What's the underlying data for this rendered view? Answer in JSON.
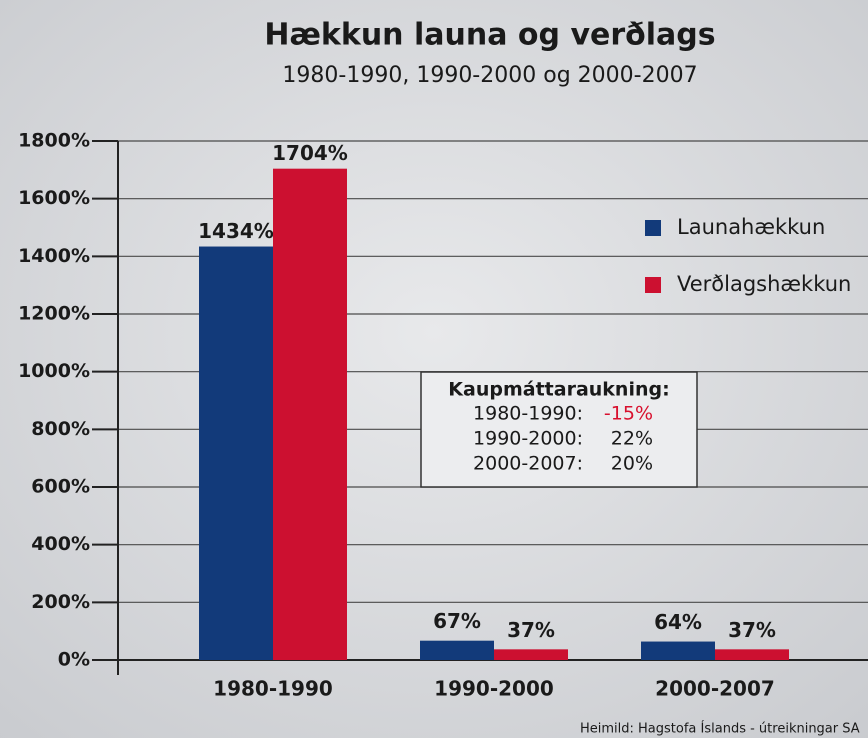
{
  "chart_data": {
    "type": "bar",
    "title": "Hækkun launa og verðlags",
    "subtitle": "1980-1990, 1990-2000 og 2000-2007",
    "categories": [
      "1980-1990",
      "1990-2000",
      "2000-2007"
    ],
    "series": [
      {
        "name": "Launahækkun",
        "color": "#123a7a",
        "values": [
          1434,
          67,
          64
        ],
        "value_labels": [
          "1434%",
          "67%",
          "64%"
        ]
      },
      {
        "name": "Verðlagshækkun",
        "color": "#cc1030",
        "values": [
          1704,
          37,
          37
        ],
        "value_labels": [
          "1704%",
          "37%",
          "37%"
        ]
      }
    ],
    "ylim": [
      0,
      1800
    ],
    "yticks": [
      {
        "value": 0,
        "label": "0%"
      },
      {
        "value": 200,
        "label": "200%"
      },
      {
        "value": 400,
        "label": "400%"
      },
      {
        "value": 600,
        "label": "600%"
      },
      {
        "value": 800,
        "label": "800%"
      },
      {
        "value": 1000,
        "label": "1000%"
      },
      {
        "value": 1200,
        "label": "1200%"
      },
      {
        "value": 1400,
        "label": "1400%"
      },
      {
        "value": 1600,
        "label": "1600%"
      },
      {
        "value": 1800,
        "label": "1800%"
      }
    ],
    "grid": true,
    "legend": "upper right",
    "annotation": {
      "title": "Kaupmáttaraukning:",
      "highlight_color": "#d8102e",
      "rows": [
        {
          "period": "1980-1990:",
          "value": "-15%",
          "highlight": true
        },
        {
          "period": "1990-2000:",
          "value": "22%",
          "highlight": false
        },
        {
          "period": "2000-2007:",
          "value": "20%",
          "highlight": false
        }
      ]
    },
    "source": "Heimild: Hagstofa Íslands - útreikningar SA"
  }
}
